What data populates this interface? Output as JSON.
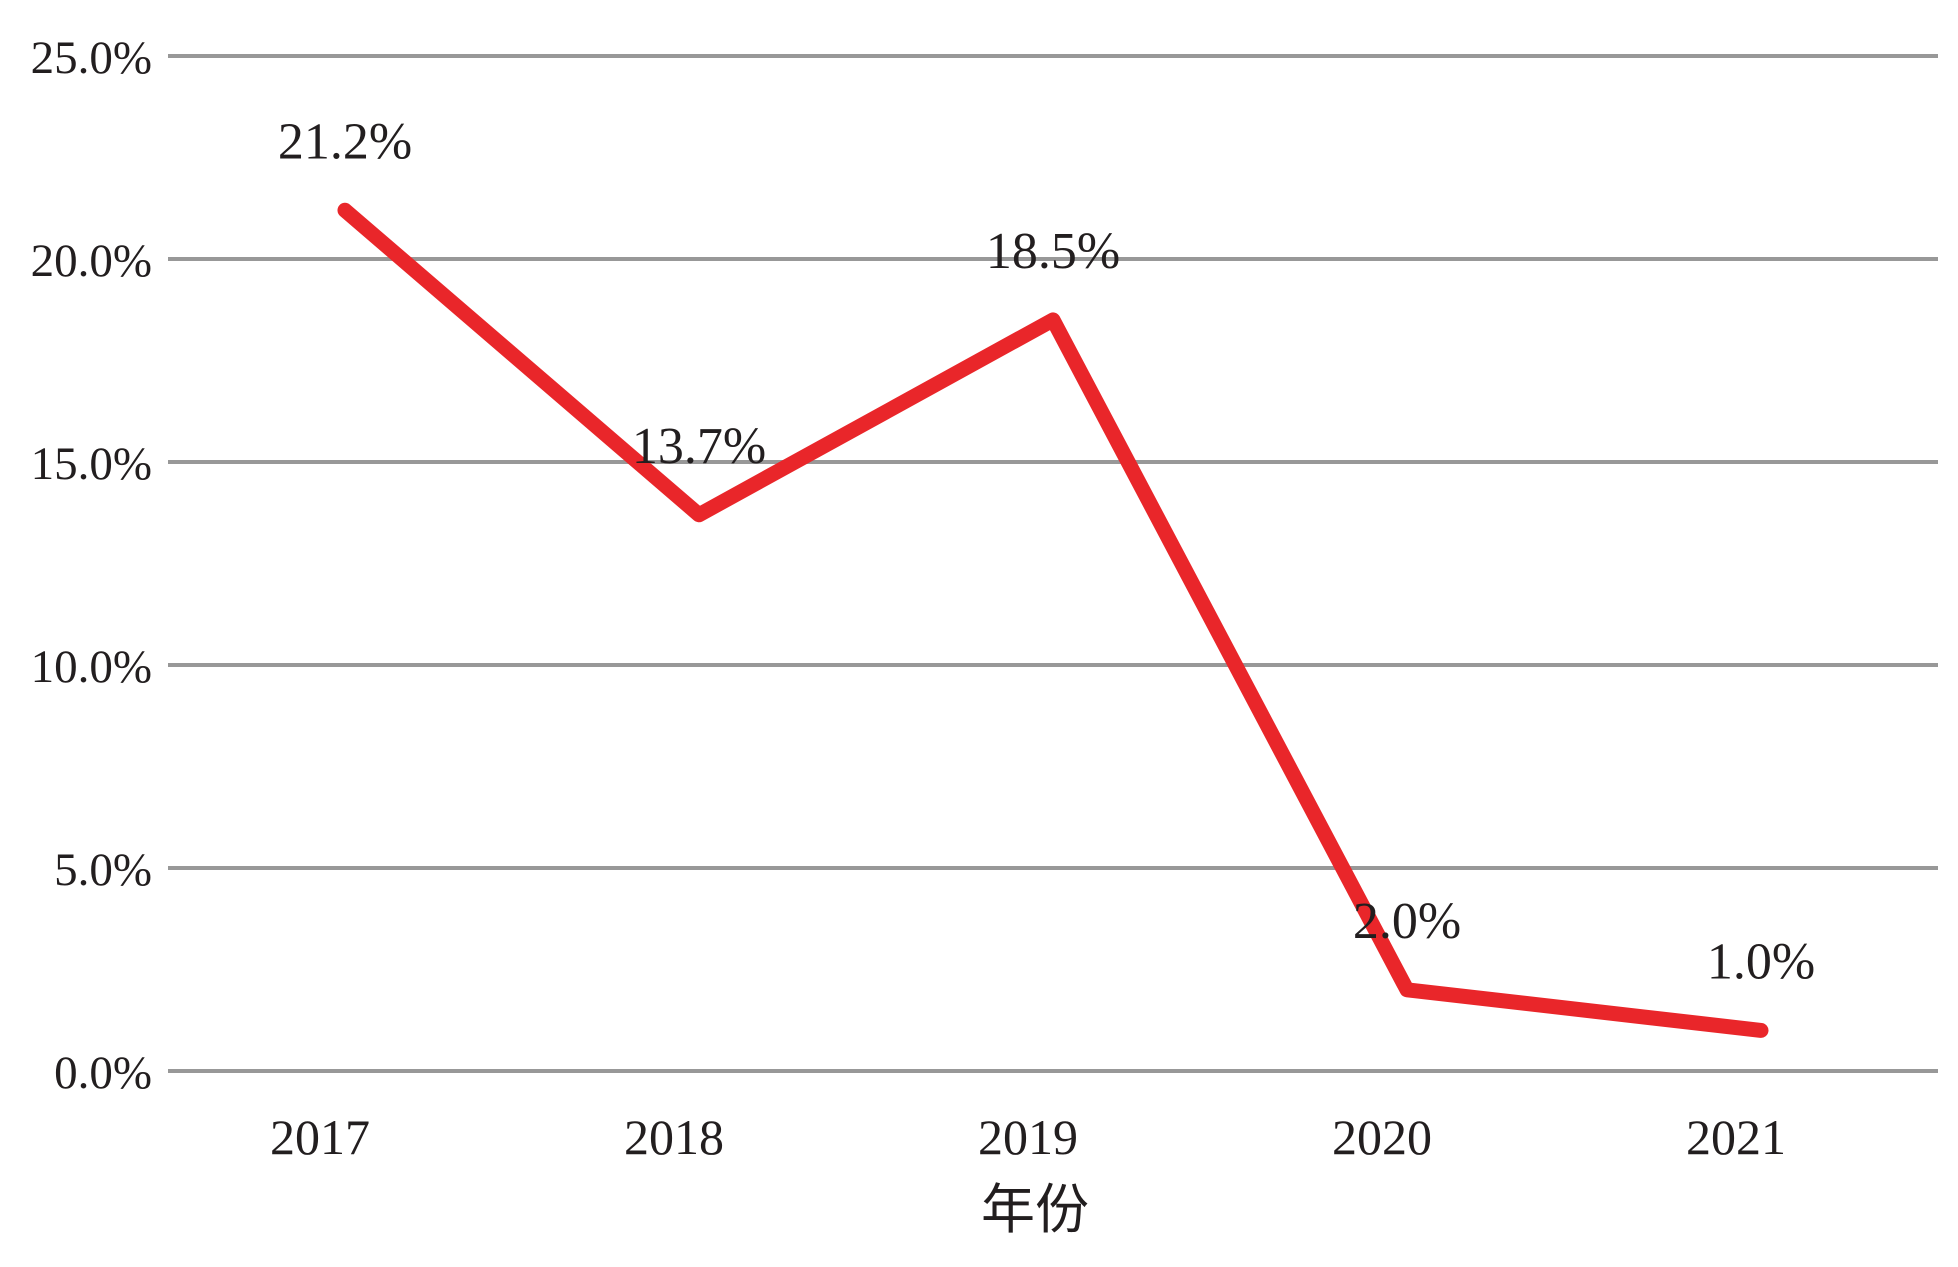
{
  "chart_data": {
    "type": "line",
    "categories": [
      "2017",
      "2018",
      "2019",
      "2020",
      "2021"
    ],
    "values": [
      21.2,
      13.7,
      18.5,
      2.0,
      1.0
    ],
    "point_labels": [
      "21.2%",
      "13.7%",
      "18.5%",
      "2.0%",
      "1.0%"
    ],
    "xlabel": "年份",
    "ylabel": "",
    "ylim": [
      0,
      25
    ],
    "ytick_step": 5,
    "ytick_labels": [
      "0.0%",
      "5.0%",
      "10.0%",
      "15.0%",
      "20.0%",
      "25.0%"
    ],
    "grid": true,
    "legend_position": "none",
    "line_color": "#e9262a",
    "grid_color": "#989898",
    "text_color": "#221e1f"
  }
}
